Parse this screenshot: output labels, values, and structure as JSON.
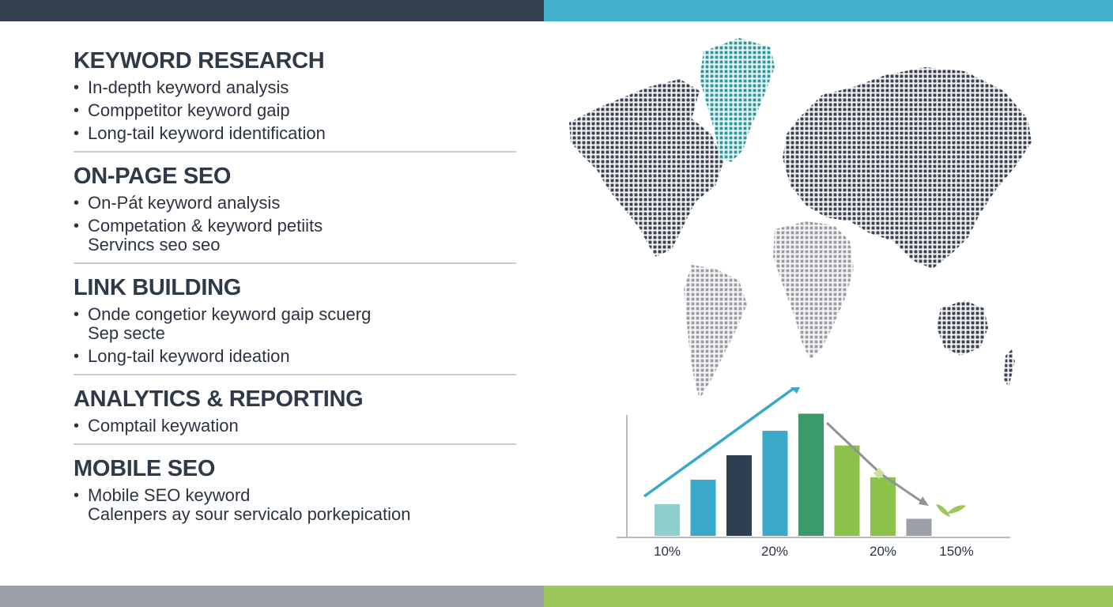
{
  "sections": [
    {
      "title": "KEYWORD RESEARCH",
      "items": [
        {
          "text": "In-depth keyword analysis"
        },
        {
          "text": "Comppetitor keyword gaip"
        },
        {
          "text": "Long-tail keyword identification"
        }
      ]
    },
    {
      "title": "ON-PAGE SEO",
      "items": [
        {
          "text": "On-Pát keyword analysis"
        },
        {
          "text": "Competation & keyword petiits",
          "sub": "Servincs seo seo"
        }
      ]
    },
    {
      "title": "LINK BUILDING",
      "items": [
        {
          "text": "Onde congetior keyword gaip scuerg",
          "sub": "Sep secte"
        },
        {
          "text": "Long-tail keyword ideation"
        }
      ]
    },
    {
      "title": "ANALYTICS & REPORTING",
      "items": [
        {
          "text": "Comptail keywation"
        }
      ]
    },
    {
      "title": "MOBILE SEO",
      "items": [
        {
          "text": "Mobile SEO keyword",
          "sub": "Calenpers ay sour servicalo porkepication"
        }
      ]
    }
  ],
  "colors": {
    "top_left_bar": "#34404e",
    "top_right_bar": "#41b0cd",
    "bottom_left_bar": "#9aa0a6",
    "bottom_right_bar": "#9dc75a",
    "map_dark": "#3a4350",
    "map_teal": "#2a9aa0",
    "map_gray": "#9a9ea3"
  },
  "chart_data": {
    "type": "bar",
    "tick_labels": [
      "10%",
      "20%",
      "20%",
      "150%"
    ],
    "values": [
      13,
      23,
      33,
      43,
      50,
      37,
      24,
      7
    ],
    "bar_colors": [
      "#8fcfcf",
      "#3aa9c9",
      "#2f3e50",
      "#3aa9c9",
      "#3a9a6a",
      "#8bc34a",
      "#8bc34a",
      "#9aa0a6"
    ],
    "trend_up": true,
    "trend_down_after_peak": true
  }
}
